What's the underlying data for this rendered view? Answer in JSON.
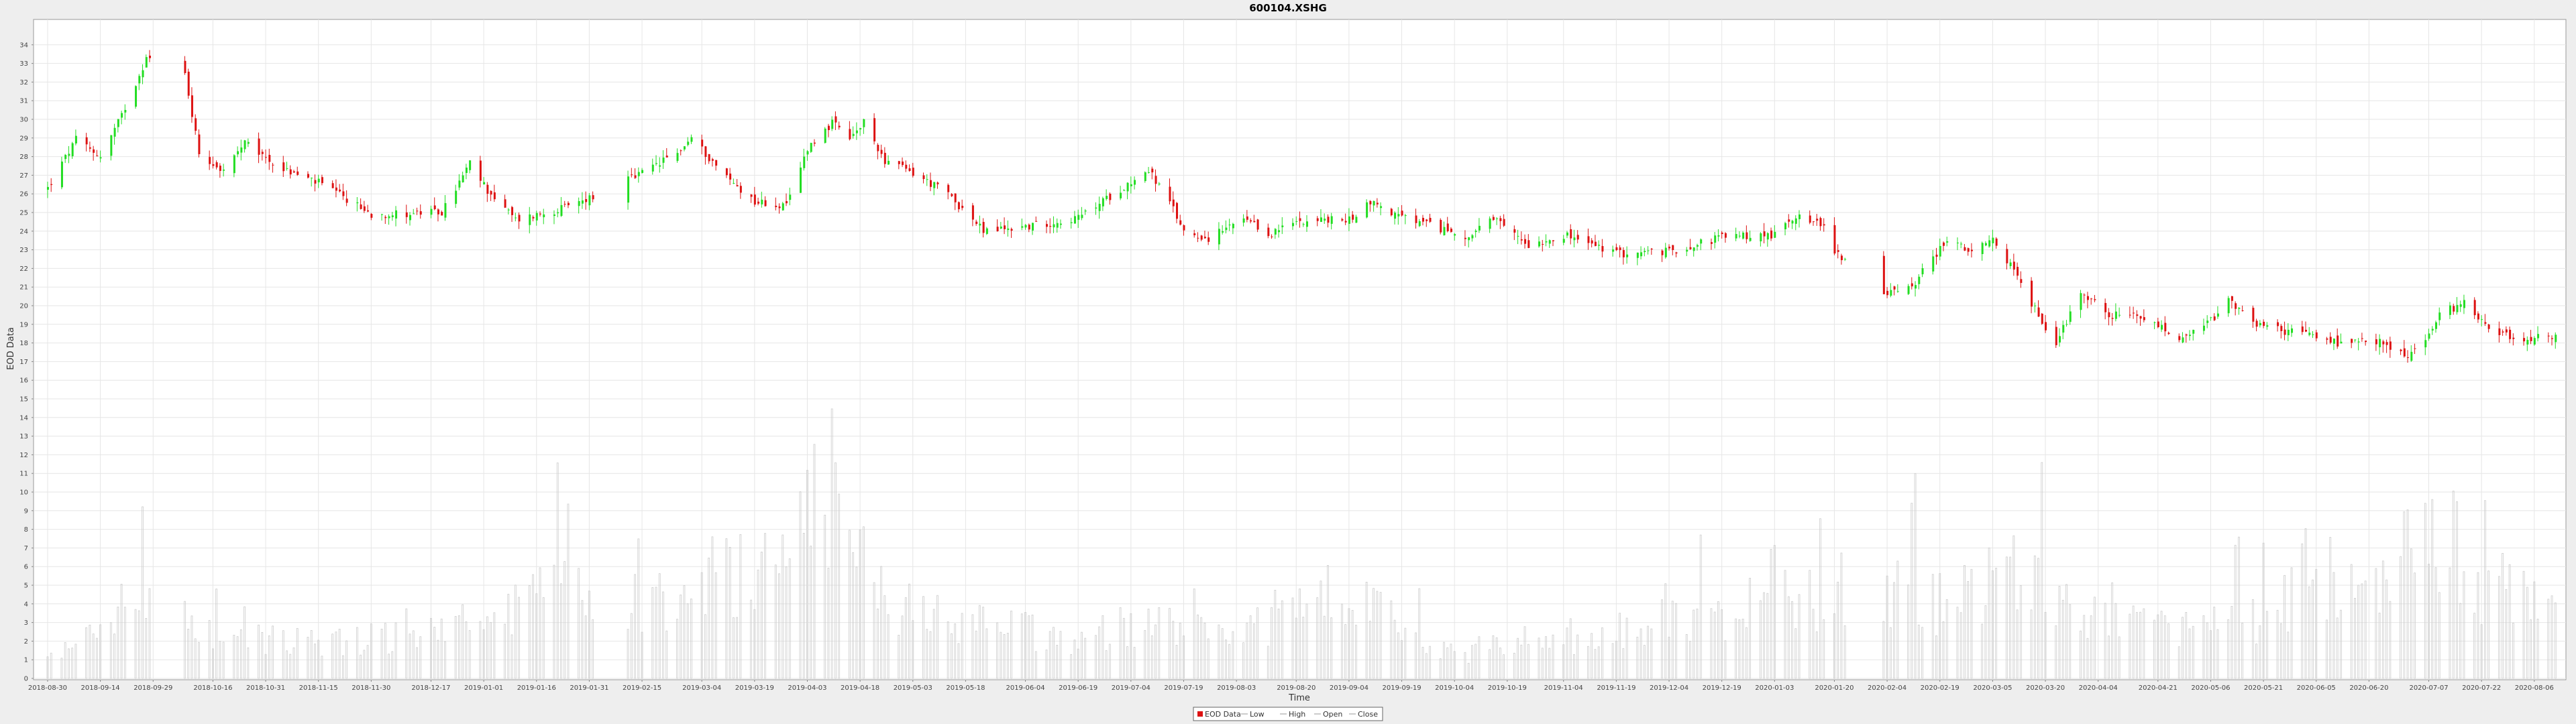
{
  "chart_data": {
    "type": "candlestick",
    "title": "600104.XSHG",
    "xlabel": "Time",
    "ylabel": "EOD Data",
    "ylim": [
      0,
      35
    ],
    "x_tick_labels": [
      "2018-08-30",
      "2018-09-14",
      "2018-09-29",
      "2018-10-16",
      "2018-10-31",
      "2018-11-15",
      "2018-11-30",
      "2018-12-17",
      "2019-01-01",
      "2019-01-16",
      "2019-01-31",
      "2019-02-15",
      "2019-03-04",
      "2019-03-19",
      "2019-04-03",
      "2019-04-18",
      "2019-05-03",
      "2019-05-18",
      "2019-06-04",
      "2019-06-19",
      "2019-07-04",
      "2019-07-19",
      "2019-08-03",
      "2019-08-20",
      "2019-09-04",
      "2019-09-19",
      "2019-10-04",
      "2019-10-19",
      "2019-11-04",
      "2019-11-19",
      "2019-12-04",
      "2019-12-19",
      "2020-01-03",
      "2020-01-20",
      "2020-02-04",
      "2020-02-19",
      "2020-03-05",
      "2020-03-20",
      "2020-04-04",
      "2020-04-21",
      "2020-05-06",
      "2020-05-21",
      "2020-06-05",
      "2020-06-20",
      "2020-07-07",
      "2020-07-22",
      "2020-08-06"
    ],
    "y_ticks": [
      0,
      1,
      2,
      3,
      4,
      5,
      6,
      7,
      8,
      9,
      10,
      11,
      12,
      13,
      14,
      15,
      16,
      17,
      18,
      19,
      20,
      21,
      22,
      23,
      24,
      25,
      26,
      27,
      28,
      29,
      30,
      31,
      32,
      33,
      34
    ],
    "price_keypoints": [
      {
        "date": "2018-08-30",
        "close": 26.3
      },
      {
        "date": "2018-09-07",
        "close": 28.9
      },
      {
        "date": "2018-09-14",
        "close": 28.0
      },
      {
        "date": "2018-09-20",
        "close": 30.2
      },
      {
        "date": "2018-09-27",
        "close": 33.3
      },
      {
        "date": "2018-10-08",
        "close": 32.4
      },
      {
        "date": "2018-10-12",
        "close": 28.2
      },
      {
        "date": "2018-10-19",
        "close": 27.2
      },
      {
        "date": "2018-10-25",
        "close": 28.7
      },
      {
        "date": "2018-11-05",
        "close": 27.3
      },
      {
        "date": "2018-11-15",
        "close": 26.6
      },
      {
        "date": "2018-11-30",
        "close": 24.9
      },
      {
        "date": "2018-12-20",
        "close": 25.0
      },
      {
        "date": "2018-12-28",
        "close": 27.6
      },
      {
        "date": "2019-01-02",
        "close": 26.2
      },
      {
        "date": "2019-01-10",
        "close": 24.6
      },
      {
        "date": "2019-01-25",
        "close": 25.3
      },
      {
        "date": "2019-02-14",
        "close": 27.0
      },
      {
        "date": "2019-02-25",
        "close": 28.2
      },
      {
        "date": "2019-03-01",
        "close": 29.0
      },
      {
        "date": "2019-03-11",
        "close": 26.9
      },
      {
        "date": "2019-03-19",
        "close": 25.6
      },
      {
        "date": "2019-03-28",
        "close": 25.3
      },
      {
        "date": "2019-04-03",
        "close": 28.5
      },
      {
        "date": "2019-04-10",
        "close": 29.8
      },
      {
        "date": "2019-04-15",
        "close": 28.9
      },
      {
        "date": "2019-04-19",
        "close": 29.8
      },
      {
        "date": "2019-04-25",
        "close": 27.8
      },
      {
        "date": "2019-05-03",
        "close": 27.1
      },
      {
        "date": "2019-05-13",
        "close": 26.0
      },
      {
        "date": "2019-05-23",
        "close": 24.0
      },
      {
        "date": "2019-06-06",
        "close": 24.3
      },
      {
        "date": "2019-06-19",
        "close": 24.7
      },
      {
        "date": "2019-07-02",
        "close": 26.4
      },
      {
        "date": "2019-07-09",
        "close": 27.3
      },
      {
        "date": "2019-07-15",
        "close": 25.5
      },
      {
        "date": "2019-07-19",
        "close": 24.0
      },
      {
        "date": "2019-07-26",
        "close": 23.6
      },
      {
        "date": "2019-08-05",
        "close": 24.6
      },
      {
        "date": "2019-08-12",
        "close": 23.8
      },
      {
        "date": "2019-08-21",
        "close": 24.6
      },
      {
        "date": "2019-09-04",
        "close": 24.6
      },
      {
        "date": "2019-09-10",
        "close": 25.6
      },
      {
        "date": "2019-09-18",
        "close": 24.8
      },
      {
        "date": "2019-09-25",
        "close": 24.4
      },
      {
        "date": "2019-10-08",
        "close": 23.7
      },
      {
        "date": "2019-10-15",
        "close": 24.6
      },
      {
        "date": "2019-10-25",
        "close": 23.3
      },
      {
        "date": "2019-11-04",
        "close": 23.8
      },
      {
        "date": "2019-11-19",
        "close": 22.8
      },
      {
        "date": "2019-12-04",
        "close": 22.9
      },
      {
        "date": "2019-12-19",
        "close": 23.7
      },
      {
        "date": "2020-01-03",
        "close": 23.8
      },
      {
        "date": "2020-01-10",
        "close": 25.0
      },
      {
        "date": "2020-01-17",
        "close": 24.2
      },
      {
        "date": "2020-01-20",
        "close": 23.0
      },
      {
        "date": "2020-02-03",
        "close": 20.5
      },
      {
        "date": "2020-02-12",
        "close": 21.3
      },
      {
        "date": "2020-02-21",
        "close": 23.6
      },
      {
        "date": "2020-02-28",
        "close": 22.8
      },
      {
        "date": "2020-03-05",
        "close": 23.5
      },
      {
        "date": "2020-03-10",
        "close": 22.2
      },
      {
        "date": "2020-03-17",
        "close": 19.8
      },
      {
        "date": "2020-03-23",
        "close": 18.0
      },
      {
        "date": "2020-03-30",
        "close": 20.8
      },
      {
        "date": "2020-04-07",
        "close": 19.5
      },
      {
        "date": "2020-04-14",
        "close": 19.4
      },
      {
        "date": "2020-04-21",
        "close": 18.9
      },
      {
        "date": "2020-04-28",
        "close": 18.1
      },
      {
        "date": "2020-05-06",
        "close": 19.2
      },
      {
        "date": "2020-05-11",
        "close": 20.2
      },
      {
        "date": "2020-05-18",
        "close": 19.1
      },
      {
        "date": "2020-05-25",
        "close": 18.7
      },
      {
        "date": "2020-06-05",
        "close": 18.4
      },
      {
        "date": "2020-06-12",
        "close": 17.9
      },
      {
        "date": "2020-06-22",
        "close": 18.1
      },
      {
        "date": "2020-07-01",
        "close": 17.3
      },
      {
        "date": "2020-07-06",
        "close": 18.1
      },
      {
        "date": "2020-07-10",
        "close": 19.5
      },
      {
        "date": "2020-07-17",
        "close": 20.2
      },
      {
        "date": "2020-07-24",
        "close": 18.9
      },
      {
        "date": "2020-07-31",
        "close": 18.2
      },
      {
        "date": "2020-08-10",
        "close": 18.3
      }
    ],
    "volume_keypoints": [
      {
        "date": "2018-08-30",
        "v": 1.0
      },
      {
        "date": "2018-09-20",
        "v": 3.5
      },
      {
        "date": "2018-10-01",
        "v": 4.5
      },
      {
        "date": "2018-10-16",
        "v": 2.5
      },
      {
        "date": "2018-11-15",
        "v": 2.0
      },
      {
        "date": "2018-12-17",
        "v": 2.5
      },
      {
        "date": "2019-01-01",
        "v": 3.0
      },
      {
        "date": "2019-01-20",
        "v": 4.5
      },
      {
        "date": "2019-02-15",
        "v": 4.0
      },
      {
        "date": "2019-03-04",
        "v": 5.5
      },
      {
        "date": "2019-03-19",
        "v": 6.0
      },
      {
        "date": "2019-04-08",
        "v": 11.0
      },
      {
        "date": "2019-04-18",
        "v": 6.0
      },
      {
        "date": "2019-05-03",
        "v": 3.5
      },
      {
        "date": "2019-05-18",
        "v": 3.0
      },
      {
        "date": "2019-06-04",
        "v": 2.5
      },
      {
        "date": "2019-06-19",
        "v": 2.0
      },
      {
        "date": "2019-07-04",
        "v": 3.0
      },
      {
        "date": "2019-07-19",
        "v": 2.5
      },
      {
        "date": "2019-08-03",
        "v": 2.0
      },
      {
        "date": "2019-08-20",
        "v": 4.0
      },
      {
        "date": "2019-09-04",
        "v": 4.5
      },
      {
        "date": "2019-09-19",
        "v": 2.5
      },
      {
        "date": "2019-10-04",
        "v": 1.2
      },
      {
        "date": "2019-10-19",
        "v": 2.0
      },
      {
        "date": "2019-11-04",
        "v": 2.2
      },
      {
        "date": "2019-11-19",
        "v": 2.5
      },
      {
        "date": "2019-12-04",
        "v": 3.0
      },
      {
        "date": "2019-12-19",
        "v": 3.5
      },
      {
        "date": "2020-01-03",
        "v": 5.0
      },
      {
        "date": "2020-01-20",
        "v": 3.5
      },
      {
        "date": "2020-02-04",
        "v": 5.0
      },
      {
        "date": "2020-02-19",
        "v": 4.0
      },
      {
        "date": "2020-03-05",
        "v": 5.0
      },
      {
        "date": "2020-03-20",
        "v": 4.5
      },
      {
        "date": "2020-04-04",
        "v": 3.0
      },
      {
        "date": "2020-04-21",
        "v": 2.5
      },
      {
        "date": "2020-05-06",
        "v": 3.0
      },
      {
        "date": "2020-05-21",
        "v": 3.0
      },
      {
        "date": "2020-06-05",
        "v": 6.0
      },
      {
        "date": "2020-06-20",
        "v": 3.5
      },
      {
        "date": "2020-07-07",
        "v": 9.0
      },
      {
        "date": "2020-07-22",
        "v": 5.0
      },
      {
        "date": "2020-08-06",
        "v": 4.5
      },
      {
        "date": "2020-08-12",
        "v": 4.0
      }
    ],
    "gaps": [
      [
        "2018-10-01",
        "2018-10-07"
      ],
      [
        "2019-02-04",
        "2019-02-10"
      ],
      [
        "2020-01-24",
        "2020-02-02"
      ]
    ],
    "grid": true,
    "legend_position": "bottom-center",
    "colors": {
      "up": "#22dd22",
      "down": "#dd1111",
      "volume": "#cccccc",
      "grid": "#e6e6e6",
      "background": "#ffffff"
    },
    "legend": [
      "EOD Data",
      "Low",
      "High",
      "Open",
      "Close"
    ]
  }
}
